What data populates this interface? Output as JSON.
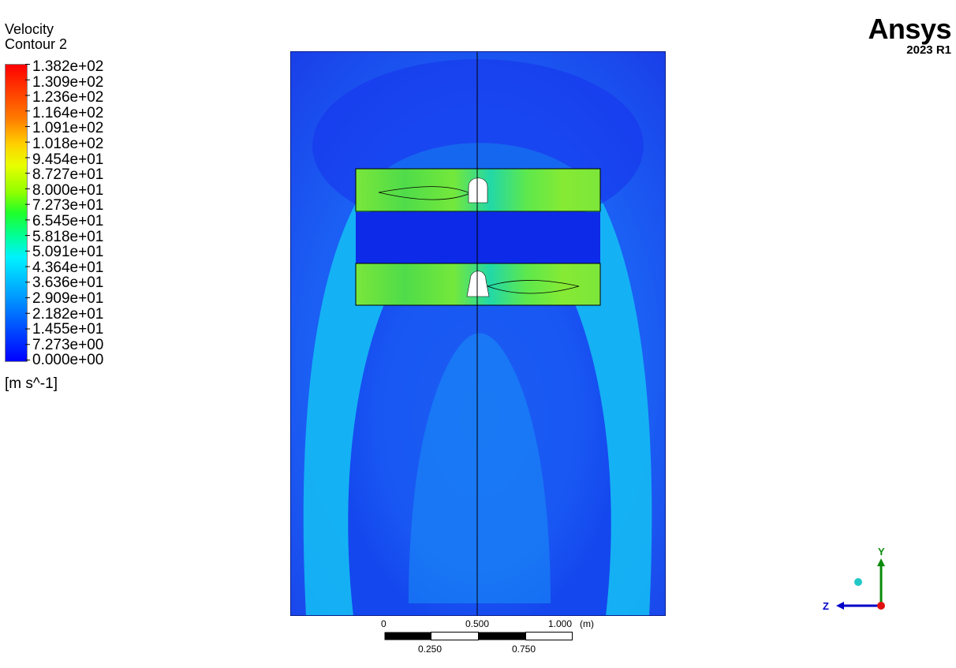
{
  "legend": {
    "title_line1": "Velocity",
    "title_line2": "Contour 2",
    "levels": [
      "1.382e+02",
      "1.309e+02",
      "1.236e+02",
      "1.164e+02",
      "1.091e+02",
      "1.018e+02",
      "9.454e+01",
      "8.727e+01",
      "8.000e+01",
      "7.273e+01",
      "6.545e+01",
      "5.818e+01",
      "5.091e+01",
      "4.364e+01",
      "3.636e+01",
      "2.909e+01",
      "2.182e+01",
      "1.455e+01",
      "7.273e+00",
      "0.000e+00"
    ],
    "unit": "[m s^-1]"
  },
  "scale_bar": {
    "top_labels": [
      "0",
      "0.500",
      "1.000"
    ],
    "bottom_labels": [
      "0.250",
      "0.750"
    ],
    "unit": "(m)"
  },
  "branding": {
    "name": "Ansys",
    "version": "2023 R1"
  },
  "triad": {
    "y_label": "Y",
    "z_label": "Z"
  },
  "colors": {
    "background_field": "#1f55f5",
    "high_velocity": "#78e837",
    "low_velocity": "#0a22e6",
    "mid_velocity": "#12c8f5",
    "axis_y": "#0a8a0a",
    "axis_z": "#0000c8",
    "axis_x_point": "#e01010"
  }
}
